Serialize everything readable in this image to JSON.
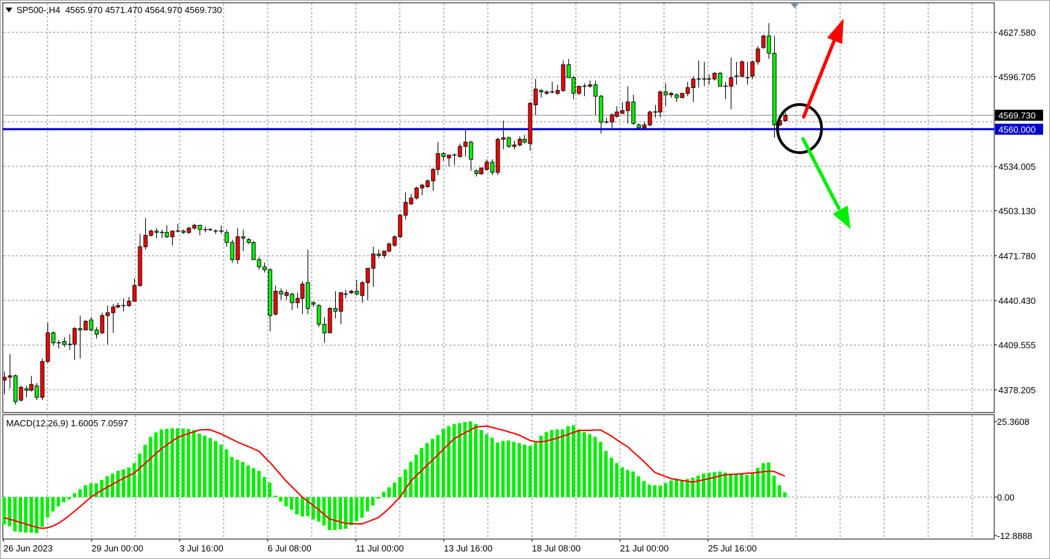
{
  "header": {
    "symbol_timeframe": "SP500-,H4",
    "open": "4565.970",
    "high": "4571.470",
    "low": "4564.970",
    "close": "4569.730"
  },
  "colors": {
    "bull_candle": "#ff0000",
    "bear_candle": "#00ff00",
    "grid": "#7a8896",
    "level_line": "#0000cc",
    "bid_line": "#8a8a8a",
    "macd_histogram": "#00ee00",
    "macd_signal": "#ff0000"
  },
  "chart_data": [
    {
      "type": "candlestick",
      "symbol": "SP500-",
      "timeframe": "H4",
      "grid": true,
      "price_ticks": [
        "4627.580",
        "4596.705",
        "4534.005",
        "4503.130",
        "4471.780",
        "4440.430",
        "4409.555",
        "4378.205"
      ],
      "time_labels": [
        "26 Jun 2023",
        "29 Jun 00:00",
        "3 Jul 16:00",
        "6 Jul 08:00",
        "11 Jul 00:00",
        "13 Jul 16:00",
        "18 Jul 08:00",
        "21 Jul 00:00",
        "25 Jul 16:00"
      ],
      "bid_price": 4569.73,
      "bid_label": "4569.730",
      "horizontal_level": 4560.0,
      "horizontal_level_label": "4560.000",
      "candles_ohlc": [
        [
          4385,
          4391,
          4375,
          4387
        ],
        [
          4387,
          4403,
          4379,
          4388
        ],
        [
          4388,
          4389,
          4368,
          4370
        ],
        [
          4371,
          4381,
          4370,
          4380
        ],
        [
          4379,
          4381,
          4373,
          4378
        ],
        [
          4378,
          4388,
          4377,
          4382
        ],
        [
          4381,
          4383,
          4371,
          4373
        ],
        [
          4373,
          4400,
          4371,
          4398
        ],
        [
          4398,
          4425,
          4397,
          4418
        ],
        [
          4418,
          4419,
          4409,
          4411
        ],
        [
          4411,
          4413,
          4407,
          4411
        ],
        [
          4412,
          4415,
          4408,
          4410
        ],
        [
          4410,
          4417,
          4406,
          4410
        ],
        [
          4410,
          4422,
          4399,
          4421
        ],
        [
          4421,
          4430,
          4400,
          4420
        ],
        [
          4420,
          4427,
          4420,
          4426
        ],
        [
          4427,
          4429,
          4419,
          4420
        ],
        [
          4420,
          4422,
          4414,
          4417
        ],
        [
          4418,
          4432,
          4417,
          4430
        ],
        [
          4430,
          4437,
          4410,
          4432
        ],
        [
          4432,
          4438,
          4418,
          4436
        ],
        [
          4436,
          4439,
          4435,
          4437
        ],
        [
          4437,
          4442,
          4433,
          4437
        ],
        [
          4437,
          4443,
          4436,
          4440
        ],
        [
          4440,
          4456,
          4440,
          4451
        ],
        [
          4451,
          4487,
          4450,
          4478
        ],
        [
          4478,
          4498,
          4476,
          4486
        ],
        [
          4486,
          4490,
          4485,
          4489
        ],
        [
          4489,
          4491,
          4484,
          4488
        ],
        [
          4488,
          4490,
          4484,
          4488
        ],
        [
          4488,
          4493,
          4484,
          4485
        ],
        [
          4485,
          4489,
          4479,
          4489
        ],
        [
          4489,
          4494,
          4488,
          4489
        ],
        [
          4489,
          4490,
          4487,
          4488
        ],
        [
          4488,
          4492,
          4487,
          4491
        ],
        [
          4491,
          4494,
          4490,
          4493
        ],
        [
          4493,
          4493,
          4486,
          4490
        ],
        [
          4490,
          4492,
          4488,
          4490
        ],
        [
          4490,
          4491,
          4489,
          4490
        ],
        [
          4489,
          4490,
          4487,
          4489
        ],
        [
          4489,
          4493,
          4487,
          4489
        ],
        [
          4488,
          4490,
          4478,
          4481
        ],
        [
          4481,
          4483,
          4467,
          4469
        ],
        [
          4469,
          4491,
          4466,
          4485
        ],
        [
          4485,
          4490,
          4475,
          4484
        ],
        [
          4483,
          4484,
          4480,
          4481
        ],
        [
          4481,
          4482,
          4469,
          4469
        ],
        [
          4469,
          4471,
          4462,
          4464
        ],
        [
          4464,
          4467,
          4460,
          4462
        ],
        [
          4462,
          4463,
          4419,
          4430
        ],
        [
          4431,
          4451,
          4430,
          4447
        ],
        [
          4447,
          4449,
          4441,
          4445
        ],
        [
          4444,
          4448,
          4441,
          4446
        ],
        [
          4445,
          4446,
          4434,
          4439
        ],
        [
          4439,
          4446,
          4435,
          4442
        ],
        [
          4442,
          4454,
          4431,
          4452
        ],
        [
          4453,
          4476,
          4431,
          4435
        ],
        [
          4439,
          4440,
          4436,
          4438
        ],
        [
          4437,
          4438,
          4422,
          4424
        ],
        [
          4424,
          4429,
          4411,
          4418
        ],
        [
          4418,
          4436,
          4418,
          4435
        ],
        [
          4435,
          4447,
          4428,
          4433
        ],
        [
          4433,
          4446,
          4424,
          4446
        ],
        [
          4445,
          4448,
          4442,
          4445
        ],
        [
          4446,
          4448,
          4445,
          4447
        ],
        [
          4447,
          4455,
          4444,
          4445
        ],
        [
          4444,
          4454,
          4439,
          4453
        ],
        [
          4453,
          4463,
          4441,
          4463
        ],
        [
          4463,
          4478,
          4450,
          4473
        ],
        [
          4473,
          4476,
          4470,
          4472
        ],
        [
          4472,
          4474,
          4470,
          4475
        ],
        [
          4475,
          4481,
          4474,
          4480
        ],
        [
          4479,
          4486,
          4478,
          4485
        ],
        [
          4485,
          4501,
          4484,
          4500
        ],
        [
          4500,
          4516,
          4497,
          4509
        ],
        [
          4508,
          4515,
          4507,
          4512
        ],
        [
          4512,
          4520,
          4511,
          4519
        ],
        [
          4519,
          4522,
          4514,
          4521
        ],
        [
          4520,
          4525,
          4519,
          4524
        ],
        [
          4524,
          4533,
          4517,
          4532
        ],
        [
          4532,
          4551,
          4528,
          4543
        ],
        [
          4543,
          4544,
          4538,
          4541
        ],
        [
          4540,
          4542,
          4534,
          4542
        ],
        [
          4542,
          4543,
          4535,
          4542
        ],
        [
          4541,
          4550,
          4540,
          4548
        ],
        [
          4548,
          4560,
          4541,
          4551
        ],
        [
          4551,
          4552,
          4531,
          4539
        ],
        [
          4531,
          4532,
          4527,
          4529
        ],
        [
          4529,
          4533,
          4528,
          4533
        ],
        [
          4532,
          4539,
          4531,
          4537
        ],
        [
          4537,
          4539,
          4528,
          4530
        ],
        [
          4530,
          4554,
          4528,
          4553
        ],
        [
          4553,
          4566,
          4546,
          4554
        ],
        [
          4554,
          4555,
          4547,
          4548
        ],
        [
          4548,
          4552,
          4546,
          4549
        ],
        [
          4549,
          4555,
          4548,
          4553
        ],
        [
          4553,
          4556,
          4550,
          4551
        ],
        [
          4550,
          4579,
          4545,
          4578
        ],
        [
          4577,
          4595,
          4570,
          4588
        ],
        [
          4587,
          4588,
          4582,
          4586
        ],
        [
          4585,
          4587,
          4584,
          4586
        ],
        [
          4586,
          4593,
          4585,
          4586
        ],
        [
          4585,
          4591,
          4584,
          4587
        ],
        [
          4587,
          4608,
          4586,
          4605
        ],
        [
          4605,
          4609,
          4596,
          4596
        ],
        [
          4596,
          4597,
          4581,
          4585
        ],
        [
          4585,
          4590,
          4584,
          4590
        ],
        [
          4590,
          4592,
          4583,
          4590
        ],
        [
          4590,
          4594,
          4589,
          4591
        ],
        [
          4591,
          4594,
          4570,
          4583
        ],
        [
          4583,
          4584,
          4557,
          4565
        ],
        [
          4565,
          4568,
          4564,
          4565
        ],
        [
          4565,
          4571,
          4561,
          4570
        ],
        [
          4569,
          4576,
          4568,
          4572
        ],
        [
          4571,
          4579,
          4571,
          4573
        ],
        [
          4573,
          4590,
          4564,
          4579
        ],
        [
          4579,
          4584,
          4563,
          4564
        ],
        [
          4563,
          4564,
          4561,
          4561
        ],
        [
          4561,
          4565,
          4560,
          4563
        ],
        [
          4563,
          4573,
          4562,
          4572
        ],
        [
          4572,
          4577,
          4568,
          4572
        ],
        [
          4572,
          4587,
          4568,
          4586
        ],
        [
          4586,
          4592,
          4576,
          4584
        ],
        [
          4584,
          4586,
          4582,
          4585
        ],
        [
          4584,
          4585,
          4579,
          4582
        ],
        [
          4582,
          4585,
          4582,
          4585
        ],
        [
          4585,
          4593,
          4583,
          4589
        ],
        [
          4589,
          4597,
          4579,
          4595
        ],
        [
          4595,
          4608,
          4589,
          4595
        ],
        [
          4595,
          4607,
          4590,
          4595
        ],
        [
          4595,
          4598,
          4591,
          4595
        ],
        [
          4595,
          4600,
          4594,
          4599
        ],
        [
          4599,
          4600,
          4590,
          4590
        ],
        [
          4590,
          4593,
          4581,
          4590
        ],
        [
          4590,
          4610,
          4574,
          4596
        ],
        [
          4597,
          4607,
          4591,
          4597
        ],
        [
          4597,
          4608,
          4596,
          4607
        ],
        [
          4596,
          4607,
          4591,
          4596
        ],
        [
          4597,
          4608,
          4595,
          4607
        ],
        [
          4607,
          4618,
          4605,
          4616
        ],
        [
          4617,
          4626,
          4616,
          4625
        ],
        [
          4625,
          4634,
          4609,
          4613
        ],
        [
          4613,
          4625,
          4554,
          4563
        ],
        [
          4563,
          4566,
          4562,
          4566
        ],
        [
          4565.97,
          4571.47,
          4564.97,
          4569.73
        ]
      ]
    },
    {
      "type": "bar",
      "title": "MACD(12,26,9) 1.6005 7.0597",
      "ticks": [
        "25.3608",
        "0.00",
        "-12.8888"
      ],
      "grid": true,
      "histogram": [
        -9.2,
        -9.8,
        -11.5,
        -11.7,
        -11.9,
        -11.9,
        -12.1,
        -10.0,
        -6.8,
        -4.8,
        -3.1,
        -1.7,
        -0.8,
        1.3,
        2.6,
        4.0,
        4.6,
        4.6,
        5.8,
        7.0,
        7.9,
        8.8,
        9.3,
        9.9,
        11.4,
        14.6,
        17.5,
        20.2,
        21.7,
        22.7,
        22.9,
        23.1,
        23.1,
        23.0,
        22.8,
        22.5,
        21.3,
        20.6,
        19.8,
        18.8,
        17.6,
        16.0,
        13.5,
        12.5,
        11.8,
        10.6,
        9.7,
        8.8,
        6.7,
        4.9,
        0.5,
        -1.5,
        -3.1,
        -4.2,
        -5.8,
        -6.5,
        -6.4,
        -7.5,
        -8.2,
        -9.5,
        -11.1,
        -11.0,
        -10.8,
        -10.6,
        -9.4,
        -8.1,
        -6.9,
        -4.8,
        -2.8,
        -0.5,
        1.7,
        3.3,
        4.9,
        6.8,
        9.3,
        11.8,
        14.2,
        16.5,
        18.1,
        19.5,
        20.8,
        22.9,
        23.8,
        24.5,
        24.8,
        25.2,
        25.4,
        24.5,
        22.5,
        21.1,
        19.9,
        18.3,
        18.8,
        19.0,
        18.5,
        18.1,
        17.6,
        17.2,
        18.3,
        20.6,
        21.8,
        22.5,
        22.7,
        22.7,
        23.8,
        24.1,
        22.7,
        21.8,
        21.1,
        20.2,
        18.5,
        15.5,
        13.2,
        11.4,
        10.0,
        9.1,
        8.6,
        7.0,
        5.4,
        4.2,
        4.0,
        3.8,
        4.7,
        5.6,
        5.8,
        5.8,
        6.1,
        6.5,
        7.2,
        7.9,
        8.2,
        8.4,
        8.6,
        8.2,
        7.9,
        7.7,
        7.7,
        7.5,
        8.2,
        9.8,
        11.4,
        11.6,
        7.2,
        4.0,
        1.6005
      ],
      "signal": [
        -6.9,
        -7.4,
        -7.9,
        -8.5,
        -9.0,
        -9.6,
        -10.1,
        -10.5,
        -10.3,
        -9.7,
        -8.8,
        -7.6,
        -6.2,
        -4.7,
        -3.2,
        -1.6,
        0,
        1.2,
        2.3,
        3.3,
        4.3,
        5.3,
        6.3,
        7.2,
        8.1,
        9.7,
        11.3,
        13.0,
        14.6,
        16.2,
        17.5,
        18.8,
        20.0,
        20.7,
        21.3,
        21.9,
        22.5,
        22.6,
        22.6,
        21.9,
        21.2,
        20.3,
        19.4,
        18.5,
        17.7,
        17.0,
        16.2,
        15.4,
        13.5,
        11.7,
        9.6,
        7.5,
        5.4,
        3.6,
        1.8,
        0,
        -1.4,
        -2.8,
        -4.2,
        -5.8,
        -7.3,
        -7.8,
        -8.3,
        -8.8,
        -8.9,
        -8.95,
        -9.0,
        -8.3,
        -7.6,
        -6.9,
        -5.4,
        -3.8,
        -1.9,
        0,
        2.7,
        5.4,
        7.2,
        8.9,
        10.7,
        12.4,
        14.2,
        16.0,
        17.8,
        19.6,
        20.6,
        21.6,
        22.5,
        23.5,
        23.7,
        23.8,
        23.4,
        22.9,
        22.5,
        21.9,
        21.4,
        20.8,
        19.9,
        19.0,
        18.6,
        18.5,
        18.8,
        19.3,
        19.8,
        20.4,
        21.0,
        21.7,
        22.3,
        22.4,
        22.4,
        22.5,
        22.5,
        21.5,
        20.5,
        19.2,
        18.0,
        16.9,
        15.2,
        13.6,
        11.9,
        10.1,
        8.3,
        7.6,
        6.9,
        6.2,
        5.9,
        5.6,
        5.3,
        5.0,
        5.4,
        5.8,
        6.2,
        6.6,
        7.1,
        7.5,
        7.6,
        7.7,
        7.8,
        8.0,
        8.1,
        8.3,
        8.5,
        8.7,
        8.6,
        7.8,
        7.0597
      ]
    }
  ],
  "annotations": {
    "circle_color": "#000000",
    "up_arrow_color": "#ff0000",
    "down_arrow_color": "#00ee00"
  }
}
